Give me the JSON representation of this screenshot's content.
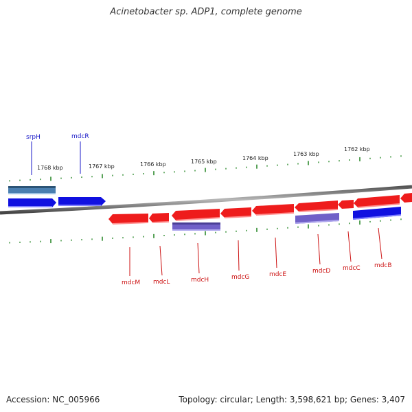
{
  "title": "Acinetobacter sp. ADP1, complete genome",
  "footer": {
    "accession": "Accession: NC_005966",
    "summary": "Topology: circular; Length: 3,598,621 bp; Genes: 3,407"
  },
  "colors": {
    "backbone": "#8a8a8a",
    "tick": "#2e8b2e",
    "forward_label": "#1a1ac8",
    "reverse_label": "#cc1111",
    "gene_blue": "#1010e0",
    "gene_red": "#ee1c1c",
    "gene_purple": "#7060c8",
    "gene_steel": "#4a7fb0"
  },
  "scale": {
    "labels": [
      "1768 kbp",
      "1767 kbp",
      "1766 kbp",
      "1765 kbp",
      "1764 kbp",
      "1763 kbp",
      "1762 kbp"
    ]
  },
  "genes": {
    "forward": [
      {
        "name": "srpH"
      },
      {
        "name": "mdcR"
      }
    ],
    "reverse": [
      {
        "name": "mdcM"
      },
      {
        "name": "mdcL"
      },
      {
        "name": "mdcH"
      },
      {
        "name": "mdcG"
      },
      {
        "name": "mdcE"
      },
      {
        "name": "mdcD"
      },
      {
        "name": "mdcC"
      },
      {
        "name": "mdcB"
      }
    ]
  }
}
